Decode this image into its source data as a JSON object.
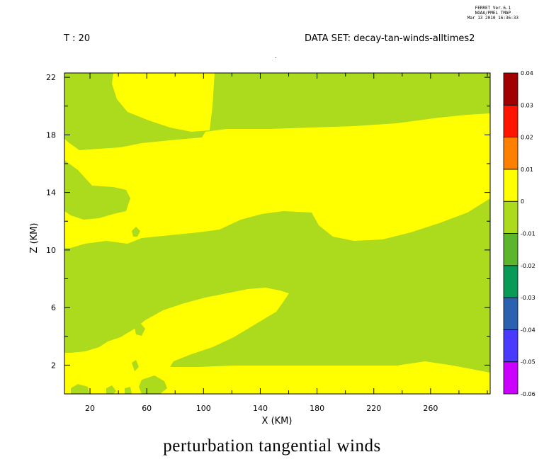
{
  "header": {
    "ferret_line1": "FERRET Ver.6.1",
    "ferret_line2": "NOAA/PMEL TMAP",
    "ferret_line3": "Mar 13 2010 16:36:33",
    "time_label": "T : 20",
    "dataset_label": "DATA SET: decay-tan-winds-alltimes2"
  },
  "chart_data": {
    "type": "heatmap",
    "title": "perturbation tangential winds",
    "xlabel": "X (KM)",
    "ylabel": "Z (KM)",
    "xlim": [
      2,
      302
    ],
    "ylim": [
      0,
      22.3
    ],
    "x_ticks": [
      20,
      60,
      100,
      140,
      180,
      220,
      260
    ],
    "y_ticks": [
      2,
      6,
      10,
      14,
      18,
      22
    ],
    "colorbar": {
      "levels": [
        -0.06,
        -0.05,
        -0.04,
        -0.03,
        -0.02,
        -0.01,
        0,
        0.01,
        0.02,
        0.03,
        0.04
      ],
      "labels": [
        "-0.06",
        "-0.05",
        "-0.04",
        "-0.03",
        "-0.02",
        "-0.01",
        "0",
        "0.01",
        "0.02",
        "0.03",
        "0.04"
      ],
      "colors": [
        "#cc00ff",
        "#4a3aff",
        "#2a62b0",
        "#0a9a58",
        "#5cb62c",
        "#acda1c",
        "#ffff00",
        "#ff8000",
        "#ff1400",
        "#a00000"
      ]
    },
    "regions": [
      {
        "level_range": [
          -0.01,
          0
        ],
        "color": "#acda1c",
        "area": "background field"
      },
      {
        "level_range": [
          0,
          0.01
        ],
        "color": "#ffff00",
        "area": "upper layer, z approx 12-19 km, all x"
      },
      {
        "level_range": [
          0,
          0.01
        ],
        "color": "#ffff00",
        "area": "top column, x approx 36-108 km, z above 19.5 km"
      },
      {
        "level_range": [
          0,
          0.01
        ],
        "color": "#ffff00",
        "area": "lower layer, z approx 0.7-7 km, sloping"
      }
    ]
  }
}
